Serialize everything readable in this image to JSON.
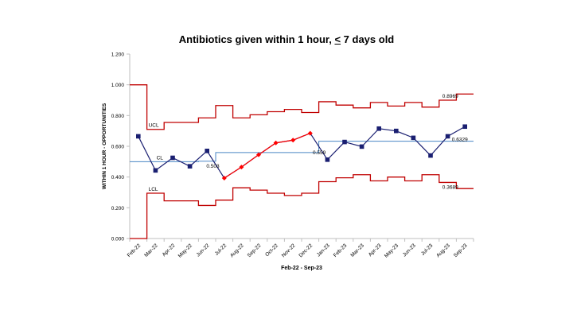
{
  "chart_data": {
    "type": "line",
    "title_before": "Antibiotics given within 1 hour, ",
    "title_lt": "<",
    "title_after": " 7 days old",
    "xlabel": "Feb-22 - Sep-23",
    "ylabel": "WITHIN 1 HOUR - OPPORTUNITIES",
    "ylim": [
      0,
      1.2
    ],
    "yticks": [
      "0.000",
      "0.200",
      "0.400",
      "0.600",
      "0.800",
      "1.000",
      "1.200"
    ],
    "categories": [
      "Feb-22",
      "Mar-22",
      "Apr-22",
      "May-22",
      "Jun-22",
      "Jul-22",
      "Aug-22",
      "Sep-22",
      "Oct-22",
      "Nov-22",
      "Dec-22",
      "Jan-23",
      "Feb-23",
      "Mar-23",
      "Apr-23",
      "May-23",
      "Jun-23",
      "Jul-23",
      "Aug-23",
      "Sep-23"
    ],
    "series": [
      {
        "values": [
          0.665,
          0.443,
          0.525,
          0.47,
          0.57,
          0.393,
          0.465,
          0.545,
          0.622,
          0.64,
          0.685,
          0.513,
          0.628,
          0.598,
          0.715,
          0.7,
          0.655,
          0.54,
          0.665,
          0.728
        ],
        "color": "#1a1f71"
      },
      {
        "name": "CL",
        "values": [
          0.5,
          0.5,
          0.5,
          0.5,
          0.503,
          0.559,
          0.559,
          0.559,
          0.559,
          0.559,
          0.559,
          0.633,
          0.633,
          0.633,
          0.633,
          0.633,
          0.633,
          0.633,
          0.633,
          0.633
        ],
        "color": "#4a86c5"
      },
      {
        "name": "UCL",
        "values": [
          1.0,
          0.71,
          0.755,
          0.755,
          0.785,
          0.865,
          0.785,
          0.805,
          0.825,
          0.84,
          0.82,
          0.89,
          0.868,
          0.85,
          0.885,
          0.862,
          0.885,
          0.855,
          0.9,
          0.94
        ],
        "color": "#c00000"
      },
      {
        "name": "LCL",
        "values": [
          0.0,
          0.295,
          0.245,
          0.245,
          0.215,
          0.25,
          0.33,
          0.315,
          0.295,
          0.28,
          0.295,
          0.37,
          0.395,
          0.415,
          0.375,
          0.4,
          0.375,
          0.415,
          0.365,
          0.325
        ],
        "color": "#c00000"
      }
    ],
    "highlight_points": [
      5,
      6,
      7,
      8,
      9,
      10
    ],
    "highlight_color": "#ff0000",
    "labels": {
      "ucl": "UCL",
      "cl": "CL",
      "lcl": "LCL"
    },
    "annotations": [
      "0.503",
      "0.559",
      "0.8969",
      "0.6329",
      "0.3689"
    ]
  }
}
